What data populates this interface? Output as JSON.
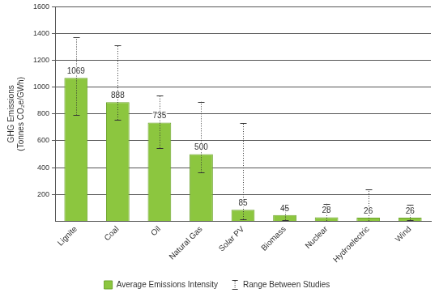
{
  "chart_data": {
    "type": "bar",
    "y_label": [
      "GHG Emissions",
      "(Tonnes CO₂e/GWh)"
    ],
    "categories": [
      "Lignite",
      "Coal",
      "Oil",
      "Natural Gas",
      "Solar PV",
      "Biomass",
      "Nuclear",
      "Hydroelectric",
      "Wind"
    ],
    "series": [
      {
        "name": "Average Emissions Intensity",
        "color": "#8cc63f",
        "values": [
          1069,
          888,
          735,
          500,
          85,
          45,
          28,
          26,
          26
        ],
        "range": {
          "name": "Range Between Studies",
          "low": [
            790,
            756,
            547,
            362,
            13,
            10,
            2,
            2,
            6
          ],
          "high": [
            1372,
            1310,
            935,
            891,
            731,
            101,
            130,
            237,
            124
          ]
        }
      }
    ],
    "ylim": [
      0,
      1600
    ],
    "yticks": [
      200,
      400,
      600,
      800,
      1000,
      1200,
      1400,
      1600
    ],
    "grid": true,
    "legend": "bottom",
    "data_labels": true
  }
}
